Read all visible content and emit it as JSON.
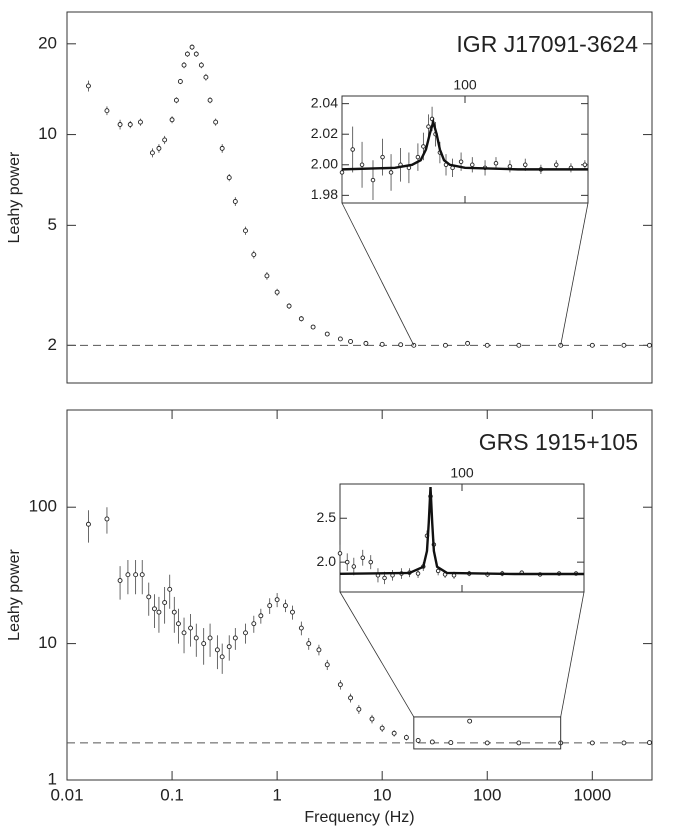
{
  "chart_data": [
    {
      "type": "scatter",
      "title": "IGR J17091-3624",
      "ylabel": "Leahy power",
      "xlog": true,
      "ylog": true,
      "xlim": [
        0.01,
        3700
      ],
      "ylim": [
        1.5,
        25.5
      ],
      "yticks": [
        2,
        5,
        10,
        20
      ],
      "reference_line": 2,
      "x": [
        0.016,
        0.024,
        0.032,
        0.04,
        0.05,
        0.065,
        0.075,
        0.085,
        0.1,
        0.11,
        0.12,
        0.13,
        0.14,
        0.155,
        0.17,
        0.19,
        0.21,
        0.23,
        0.26,
        0.3,
        0.35,
        0.4,
        0.5,
        0.6,
        0.8,
        1,
        1.3,
        1.7,
        2.2,
        3,
        4,
        5,
        7,
        10,
        15,
        20,
        40,
        65,
        100,
        200,
        500,
        1000,
        2000,
        3500
      ],
      "values": [
        14.5,
        12,
        10.8,
        10.8,
        11,
        8.7,
        9,
        9.6,
        11.2,
        13,
        15,
        17,
        18.5,
        19.5,
        18.5,
        17,
        15.5,
        13,
        11,
        9,
        7.2,
        6,
        4.8,
        4,
        3.4,
        3.0,
        2.7,
        2.45,
        2.3,
        2.18,
        2.1,
        2.06,
        2.03,
        2.015,
        2.01,
        2.0,
        2.0,
        2.03,
        2.0,
        2.0,
        2.0,
        2.0,
        2.0,
        2.0
      ],
      "errors": [
        0.6,
        0.4,
        0.4,
        0.3,
        0.3,
        0.3,
        0.3,
        0.3,
        0.3,
        0.3,
        0.3,
        0.4,
        0.4,
        0.4,
        0.4,
        0.4,
        0.4,
        0.3,
        0.3,
        0.3,
        0.2,
        0.2,
        0.15,
        0.12,
        0.1,
        0.08,
        0.06,
        0.05,
        0.04,
        0.03,
        0.02,
        0.02,
        0.01,
        0.01,
        0.01,
        0.01,
        0.01,
        0.01,
        0.01,
        0.01,
        0.01,
        0.01,
        0.01,
        0.01
      ],
      "inset": {
        "xlog": true,
        "xlim": [
          20,
          500
        ],
        "ylim": [
          1.975,
          2.045
        ],
        "xticks": [
          100
        ],
        "yticks": [
          {
            "value": 1.98,
            "label": "1.98"
          },
          {
            "value": 2.0,
            "label": "2.00"
          },
          {
            "value": 2.02,
            "label": "2.02"
          },
          {
            "value": 2.04,
            "label": "2.04"
          }
        ],
        "x": [
          20,
          23,
          26,
          30,
          34,
          38,
          43,
          48,
          54,
          58,
          62,
          65,
          68,
          72,
          78,
          85,
          95,
          110,
          130,
          150,
          180,
          220,
          270,
          330,
          400,
          480
        ],
        "values": [
          1.995,
          2.01,
          2.0,
          1.99,
          2.005,
          1.995,
          2.0,
          1.998,
          2.005,
          2.012,
          2.025,
          2.03,
          2.02,
          2.008,
          2.0,
          1.998,
          2.002,
          2.0,
          1.998,
          2.001,
          1.999,
          2.0,
          1.997,
          2.0,
          1.998,
          2.0
        ],
        "errors": [
          0.015,
          0.015,
          0.015,
          0.013,
          0.012,
          0.012,
          0.011,
          0.01,
          0.009,
          0.009,
          0.008,
          0.008,
          0.008,
          0.007,
          0.007,
          0.006,
          0.006,
          0.005,
          0.005,
          0.004,
          0.004,
          0.004,
          0.003,
          0.003,
          0.003,
          0.003
        ],
        "model": {
          "x": [
            20,
            40,
            50,
            56,
            60,
            63,
            66,
            69,
            72,
            76,
            82,
            100,
            200,
            500
          ],
          "values": [
            1.997,
            1.998,
            2.0,
            2.003,
            2.01,
            2.02,
            2.028,
            2.02,
            2.01,
            2.003,
            2.0,
            1.998,
            1.997,
            1.997
          ]
        }
      }
    },
    {
      "type": "scatter",
      "title": "GRS 1915+105",
      "ylabel": "Leahy power",
      "xlabel": "Frequency (Hz)",
      "xlog": true,
      "ylog": true,
      "xlim": [
        0.01,
        3700
      ],
      "ylim": [
        1,
        516
      ],
      "xticks": [
        0.01,
        0.1,
        1,
        10,
        100,
        1000
      ],
      "yticks": [
        1,
        10,
        100
      ],
      "reference_line": 1.87,
      "zoom_box": {
        "xlim": [
          20,
          500
        ],
        "ylim": [
          1.69,
          2.9
        ]
      },
      "x": [
        0.016,
        0.024,
        0.032,
        0.038,
        0.045,
        0.052,
        0.06,
        0.068,
        0.075,
        0.085,
        0.095,
        0.105,
        0.115,
        0.13,
        0.15,
        0.17,
        0.2,
        0.23,
        0.27,
        0.3,
        0.35,
        0.4,
        0.5,
        0.6,
        0.7,
        0.85,
        1,
        1.2,
        1.4,
        1.7,
        2,
        2.5,
        3,
        4,
        5,
        6,
        8,
        10,
        13,
        17,
        22,
        30,
        45,
        68,
        100,
        200,
        500,
        1000,
        2000,
        3500
      ],
      "values": [
        75,
        82,
        29,
        32,
        32,
        32,
        22,
        18,
        17,
        20,
        25,
        17,
        14,
        12,
        13,
        11,
        10,
        11,
        9,
        8,
        9.5,
        11,
        12,
        14,
        16,
        19,
        21,
        19,
        17,
        13,
        10,
        9,
        7,
        5,
        4,
        3.3,
        2.8,
        2.4,
        2.2,
        2.05,
        1.95,
        1.9,
        1.88,
        2.7,
        1.87,
        1.87,
        1.87,
        1.87,
        1.87,
        1.88
      ],
      "errors": [
        20,
        18,
        8,
        9,
        9,
        9,
        6,
        5,
        5,
        6,
        7,
        5,
        4,
        3.5,
        3.5,
        3,
        3,
        3,
        2.5,
        2,
        2,
        2,
        2,
        2,
        2,
        2.5,
        2.5,
        2,
        2,
        1.5,
        1,
        0.8,
        0.6,
        0.4,
        0.3,
        0.25,
        0.2,
        0.15,
        0.12,
        0.1,
        0.08,
        0.06,
        0.05,
        0.1,
        0.03,
        0.02,
        0.02,
        0.015,
        0.01,
        0.01
      ],
      "inset": {
        "xlog": true,
        "xlim": [
          20,
          500
        ],
        "ylim": [
          1.66,
          2.89
        ],
        "xticks": [
          100
        ],
        "yticks": [
          {
            "value": 2,
            "label": "2.0"
          },
          2.5
        ],
        "x": [
          20,
          22,
          24,
          27,
          30,
          33,
          36,
          40,
          45,
          50,
          56,
          60,
          63,
          66,
          69,
          73,
          80,
          90,
          110,
          140,
          170,
          220,
          280,
          360,
          450
        ],
        "values": [
          2.1,
          2.0,
          1.95,
          2.05,
          2.0,
          1.85,
          1.82,
          1.85,
          1.87,
          1.88,
          1.87,
          1.95,
          2.3,
          2.75,
          2.2,
          1.9,
          1.86,
          1.85,
          1.87,
          1.86,
          1.87,
          1.88,
          1.86,
          1.87,
          1.87
        ],
        "errors": [
          0.1,
          0.1,
          0.1,
          0.09,
          0.08,
          0.08,
          0.07,
          0.06,
          0.06,
          0.05,
          0.05,
          0.05,
          0.06,
          0.08,
          0.06,
          0.05,
          0.04,
          0.04,
          0.03,
          0.03,
          0.03,
          0.02,
          0.02,
          0.02,
          0.02
        ],
        "model": {
          "x": [
            20,
            50,
            60,
            63,
            64.5,
            66,
            67.5,
            69,
            72,
            82,
            200,
            500
          ],
          "values": [
            1.867,
            1.877,
            1.947,
            2.127,
            2.449,
            2.855,
            2.449,
            2.127,
            1.947,
            1.877,
            1.865,
            1.865
          ]
        }
      }
    }
  ]
}
